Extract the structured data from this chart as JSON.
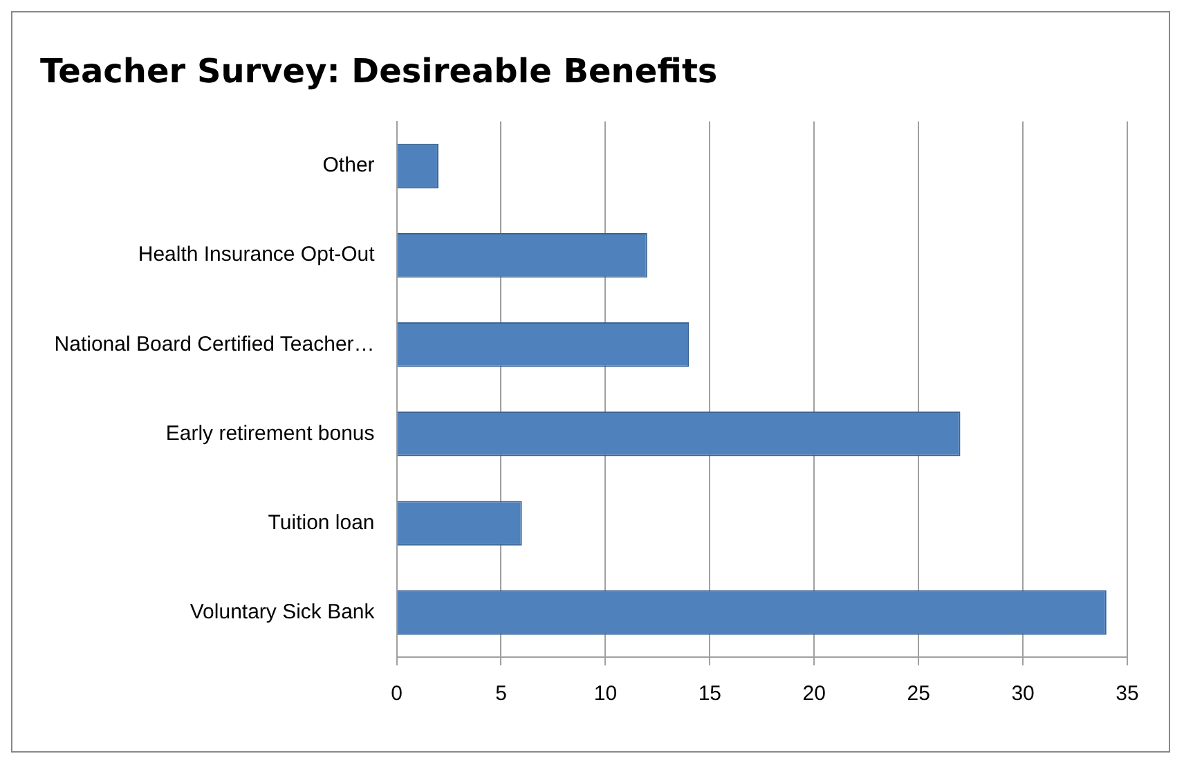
{
  "chart_data": {
    "type": "bar",
    "orientation": "horizontal",
    "title": "Teacher Survey: Desireable Benefits",
    "categories": [
      "Other",
      "Health Insurance Opt-Out",
      "National Board Certified Teacher…",
      "Early retirement bonus",
      "Tuition loan",
      "Voluntary Sick Bank"
    ],
    "values": [
      2,
      12,
      14,
      27,
      6,
      34
    ],
    "color": "#4f81bd",
    "xlim": [
      0,
      35
    ],
    "xticks": [
      0,
      5,
      10,
      15,
      20,
      25,
      30,
      35
    ],
    "grid": "x",
    "legend": false
  }
}
